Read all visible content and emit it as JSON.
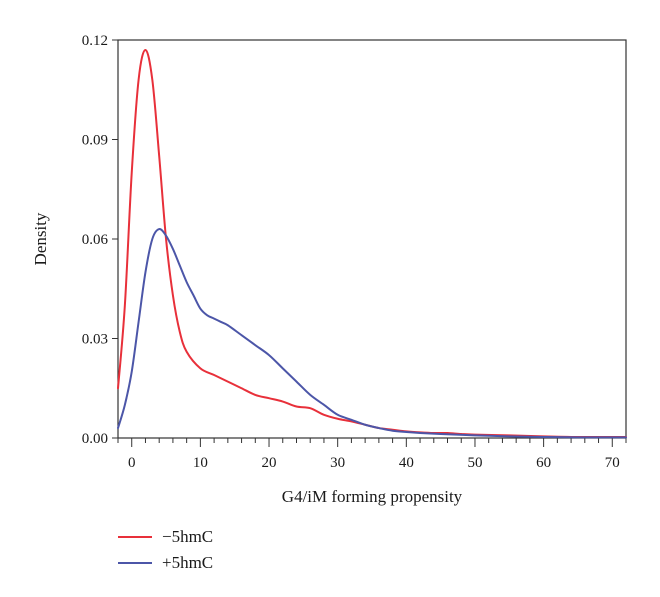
{
  "chart_data": {
    "type": "line",
    "title": "",
    "xlabel": "G4/iM forming propensity",
    "ylabel": "Density",
    "xlim": [
      -2,
      72
    ],
    "ylim": [
      0,
      0.12
    ],
    "x_ticks": [
      0,
      10,
      20,
      30,
      40,
      50,
      60,
      70
    ],
    "x_tick_labels": [
      "0",
      "10",
      "20",
      "30",
      "40",
      "50",
      "60",
      "70"
    ],
    "x_minor_step": 2,
    "y_ticks": [
      0,
      0.03,
      0.06,
      0.09,
      0.12
    ],
    "y_tick_labels": [
      "0.00",
      "0.03",
      "0.06",
      "0.09",
      "0.12"
    ],
    "grid": false,
    "legend_position": "bottom-left-outside",
    "series": [
      {
        "name": "−5hmC",
        "color": "#e8303a",
        "points": [
          [
            -2,
            0.015
          ],
          [
            -1,
            0.04
          ],
          [
            0,
            0.08
          ],
          [
            1,
            0.108
          ],
          [
            2,
            0.117
          ],
          [
            3,
            0.108
          ],
          [
            4,
            0.085
          ],
          [
            5,
            0.06
          ],
          [
            6,
            0.043
          ],
          [
            7,
            0.032
          ],
          [
            8,
            0.026
          ],
          [
            10,
            0.021
          ],
          [
            12,
            0.019
          ],
          [
            14,
            0.017
          ],
          [
            16,
            0.015
          ],
          [
            18,
            0.013
          ],
          [
            20,
            0.012
          ],
          [
            22,
            0.011
          ],
          [
            24,
            0.0095
          ],
          [
            26,
            0.009
          ],
          [
            28,
            0.007
          ],
          [
            30,
            0.0058
          ],
          [
            32,
            0.005
          ],
          [
            34,
            0.004
          ],
          [
            36,
            0.003
          ],
          [
            38,
            0.0025
          ],
          [
            40,
            0.002
          ],
          [
            42,
            0.0017
          ],
          [
            44,
            0.0015
          ],
          [
            46,
            0.0015
          ],
          [
            48,
            0.0012
          ],
          [
            50,
            0.001
          ],
          [
            55,
            0.0008
          ],
          [
            60,
            0.0005
          ],
          [
            65,
            0.0003
          ],
          [
            70,
            0.0003
          ],
          [
            72,
            0.0003
          ]
        ]
      },
      {
        "name": "+5hmC",
        "color": "#4c56a8",
        "points": [
          [
            -2,
            0.003
          ],
          [
            -1,
            0.01
          ],
          [
            0,
            0.02
          ],
          [
            1,
            0.035
          ],
          [
            2,
            0.05
          ],
          [
            3,
            0.06
          ],
          [
            4,
            0.063
          ],
          [
            5,
            0.061
          ],
          [
            6,
            0.057
          ],
          [
            7,
            0.052
          ],
          [
            8,
            0.047
          ],
          [
            9,
            0.043
          ],
          [
            10,
            0.039
          ],
          [
            11,
            0.037
          ],
          [
            12,
            0.036
          ],
          [
            13,
            0.035
          ],
          [
            14,
            0.034
          ],
          [
            16,
            0.031
          ],
          [
            18,
            0.028
          ],
          [
            20,
            0.025
          ],
          [
            22,
            0.021
          ],
          [
            24,
            0.017
          ],
          [
            26,
            0.013
          ],
          [
            28,
            0.01
          ],
          [
            30,
            0.007
          ],
          [
            32,
            0.0055
          ],
          [
            34,
            0.004
          ],
          [
            36,
            0.003
          ],
          [
            38,
            0.0022
          ],
          [
            40,
            0.0018
          ],
          [
            42,
            0.0015
          ],
          [
            45,
            0.0012
          ],
          [
            50,
            0.0008
          ],
          [
            55,
            0.0005
          ],
          [
            60,
            0.0003
          ],
          [
            65,
            0.0002
          ],
          [
            70,
            0.0002
          ],
          [
            72,
            0.0002
          ]
        ]
      }
    ]
  }
}
